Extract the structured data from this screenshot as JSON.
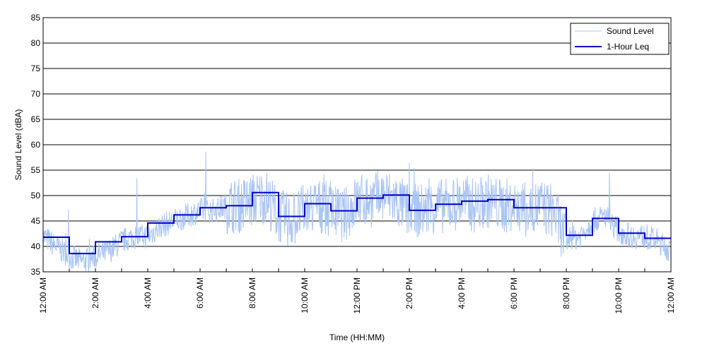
{
  "chart_data": {
    "type": "line",
    "xlabel": "Time (HH:MM)",
    "ylabel": "Sound Level (dBA)",
    "ylim": [
      35,
      85
    ],
    "yticks": [
      35,
      40,
      45,
      50,
      55,
      60,
      65,
      70,
      75,
      80,
      85
    ],
    "xlim": [
      0,
      24
    ],
    "xticks": [
      {
        "hour": 0,
        "label": "12:00 AM"
      },
      {
        "hour": 2,
        "label": "2:00 AM"
      },
      {
        "hour": 4,
        "label": "4:00 AM"
      },
      {
        "hour": 6,
        "label": "6:00 AM"
      },
      {
        "hour": 8,
        "label": "8:00 AM"
      },
      {
        "hour": 10,
        "label": "10:00 AM"
      },
      {
        "hour": 12,
        "label": "12:00 PM"
      },
      {
        "hour": 14,
        "label": "2:00 PM"
      },
      {
        "hour": 16,
        "label": "4:00 PM"
      },
      {
        "hour": 18,
        "label": "6:00 PM"
      },
      {
        "hour": 20,
        "label": "8:00 PM"
      },
      {
        "hour": 22,
        "label": "10:00 PM"
      },
      {
        "hour": 24,
        "label": "12:00 AM"
      }
    ],
    "grid": "horizontal",
    "legend_position": "top-right",
    "series": [
      {
        "name": "Sound Level",
        "color": "#a9c4f5",
        "x": [
          0,
          0.5,
          1,
          1.5,
          2,
          2.5,
          3,
          3.5,
          4,
          4.5,
          5,
          5.5,
          6,
          6.5,
          7,
          7.5,
          8,
          8.5,
          9,
          9.5,
          10,
          10.5,
          11,
          11.5,
          12,
          12.5,
          13,
          13.5,
          14,
          14.5,
          15,
          15.5,
          16,
          16.5,
          17,
          17.5,
          18,
          18.5,
          19,
          19.5,
          20,
          20.5,
          21,
          21.5,
          22,
          22.5,
          23,
          23.5,
          24
        ],
        "y": [
          42,
          40,
          38,
          37,
          38,
          39,
          41,
          42,
          42,
          44,
          45,
          46,
          47,
          47,
          48,
          48,
          49,
          50,
          46,
          45,
          47,
          48,
          47,
          46,
          49,
          49,
          50,
          49,
          47,
          47,
          48,
          48,
          49,
          48,
          49,
          48,
          48,
          47,
          48,
          47,
          41,
          42,
          45,
          46,
          43,
          42,
          42,
          41,
          39
        ]
      },
      {
        "name": "1-Hour Leq",
        "color": "#0000cc",
        "x": [
          0,
          1,
          2,
          3,
          4,
          5,
          6,
          7,
          8,
          9,
          10,
          11,
          12,
          13,
          14,
          15,
          16,
          17,
          18,
          19,
          20,
          21,
          22,
          23
        ],
        "y": [
          41.8,
          38.6,
          40.9,
          41.9,
          44.6,
          46.2,
          47.6,
          48.0,
          50.6,
          45.9,
          48.4,
          47.0,
          49.5,
          50.1,
          47.1,
          48.3,
          48.9,
          49.2,
          47.6,
          47.6,
          42.2,
          45.5,
          42.6,
          41.6
        ]
      }
    ]
  }
}
